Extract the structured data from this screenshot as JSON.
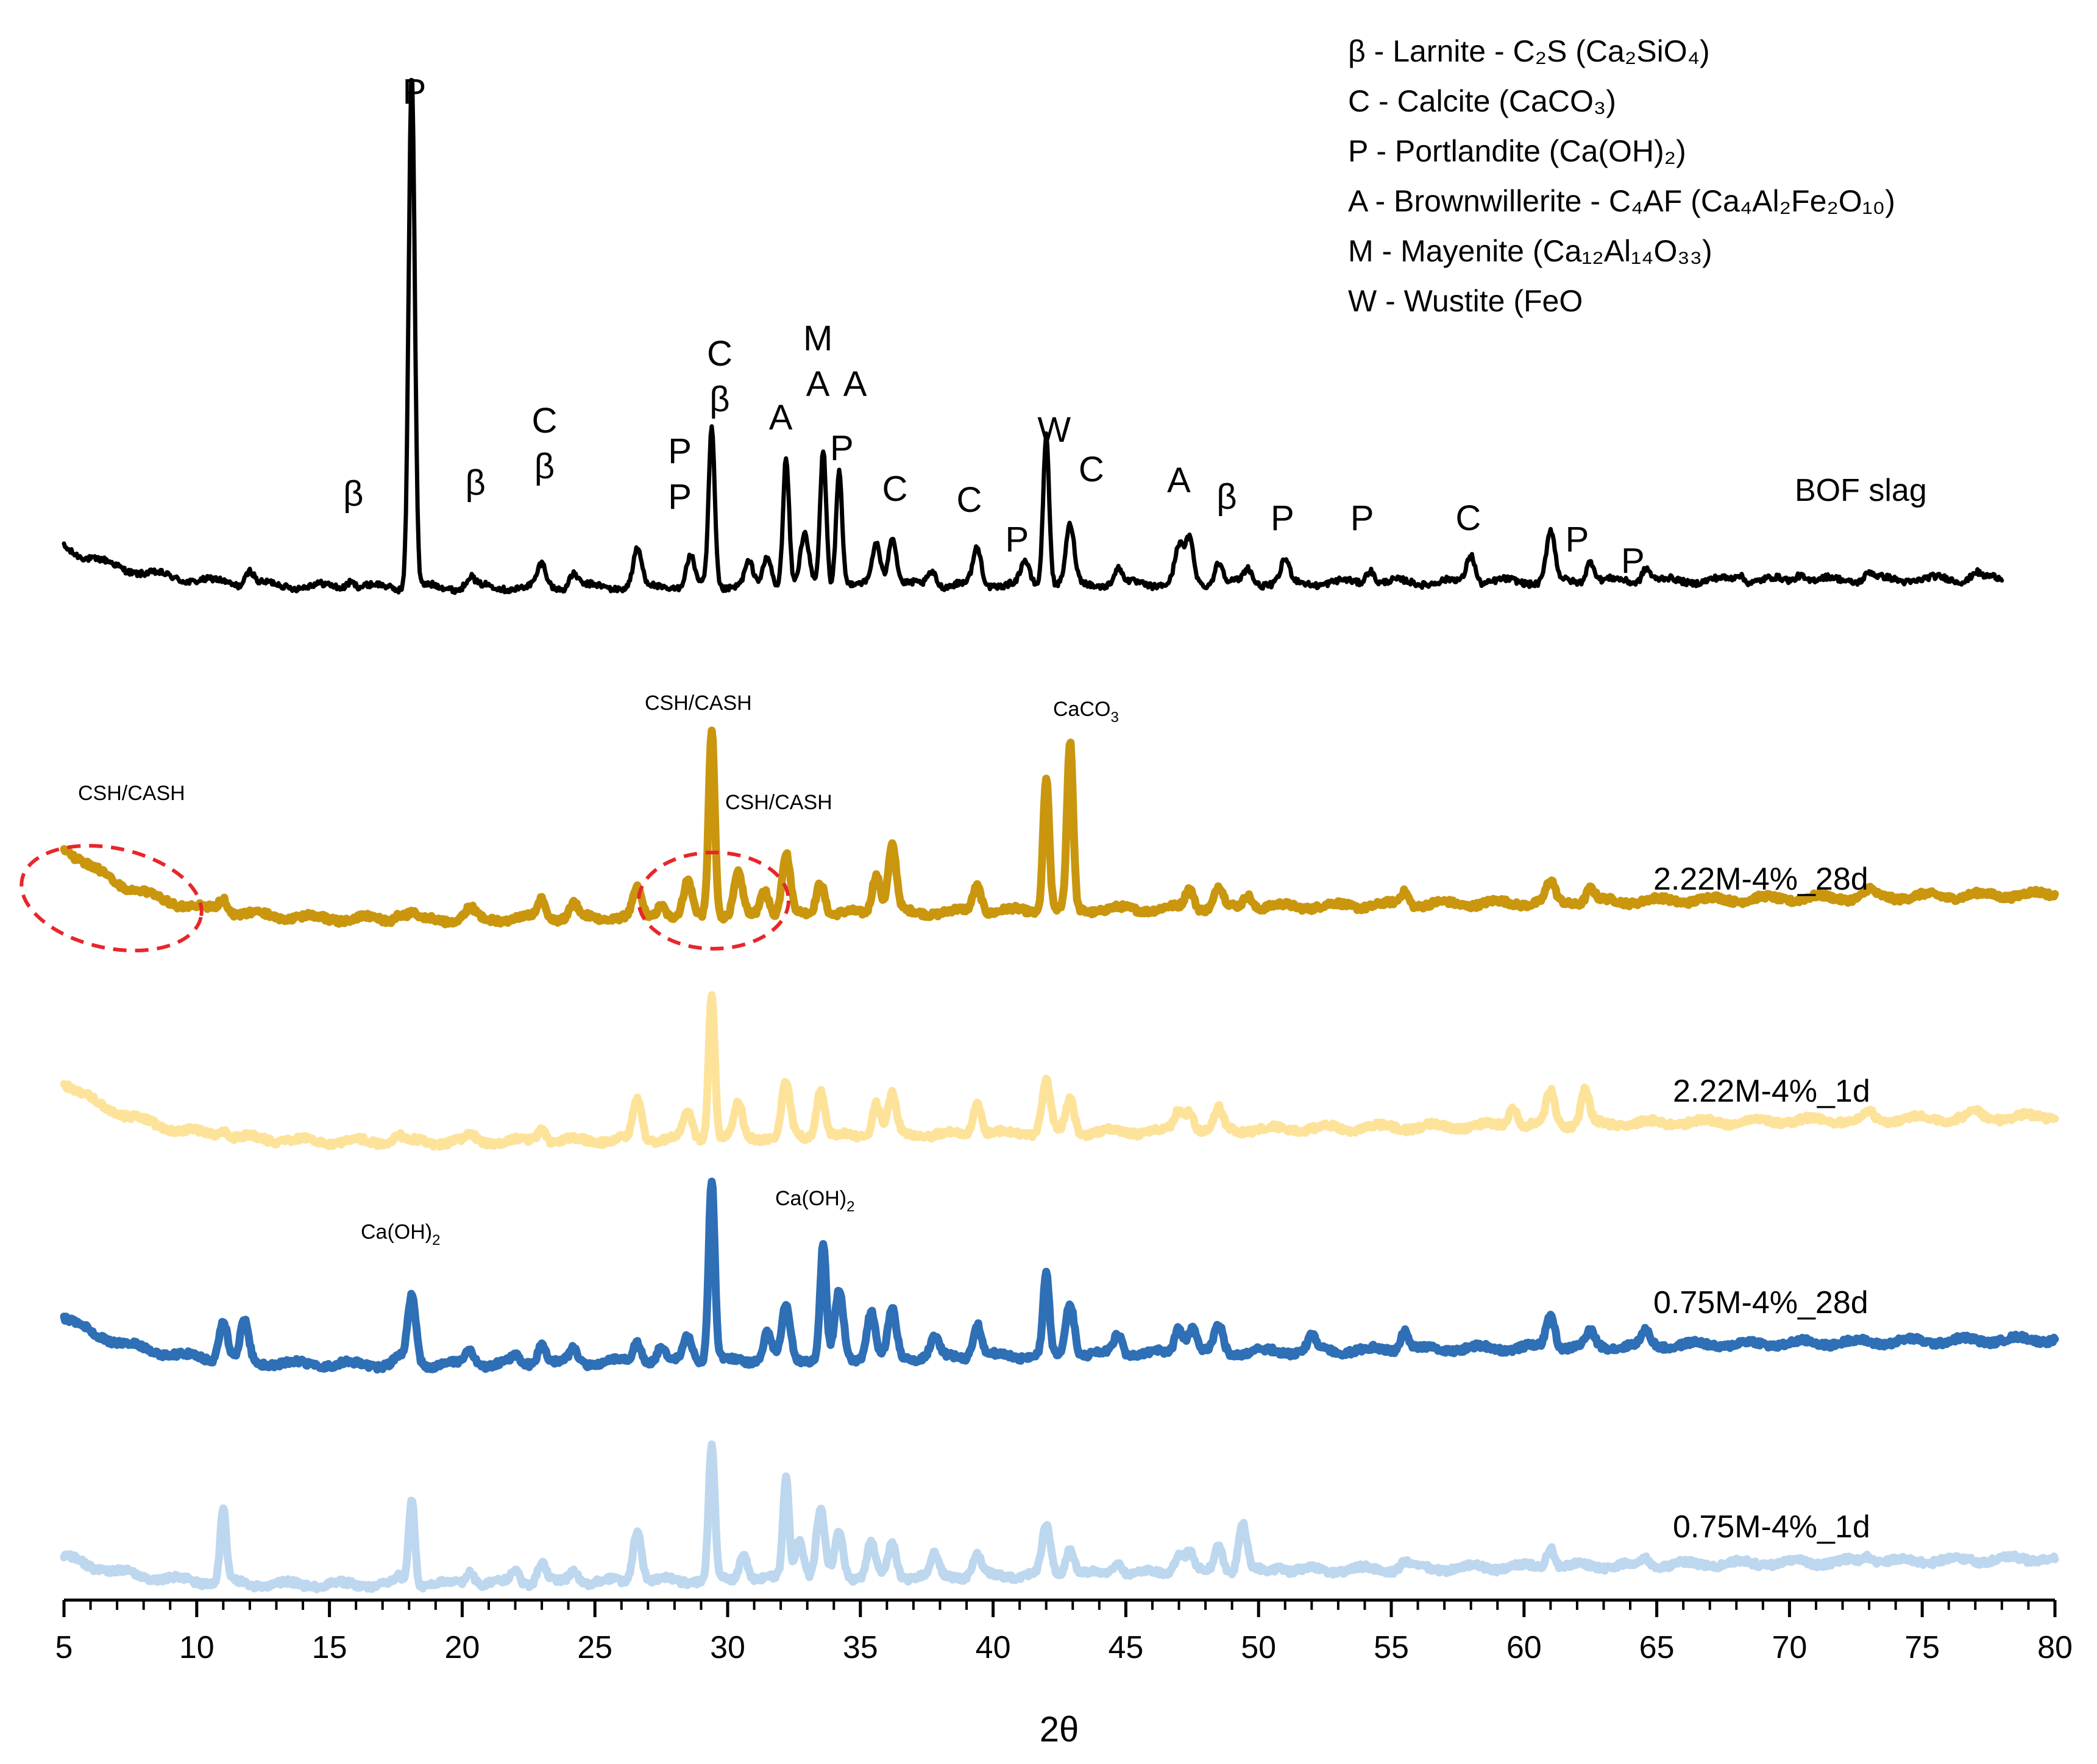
{
  "chart_data": {
    "type": "line",
    "title": "",
    "xlabel": "2θ",
    "ylabel": "",
    "xlim": [
      5,
      80
    ],
    "xticks": [
      "5",
      "10",
      "15",
      "20",
      "25",
      "30",
      "35",
      "40",
      "45",
      "50",
      "55",
      "60",
      "65",
      "70",
      "75",
      "80"
    ],
    "series": [
      {
        "name": "BOF slag",
        "color": "#000000",
        "x_range": [
          5,
          78
        ],
        "baseline": 0,
        "start_level": 0.06,
        "peaks": [
          [
            12.0,
            0.02
          ],
          [
            15.8,
            0.01
          ],
          [
            18.1,
            0.72
          ],
          [
            20.3,
            0.015
          ],
          [
            23.0,
            0.03
          ],
          [
            24.2,
            0.02
          ],
          [
            26.6,
            0.05
          ],
          [
            28.6,
            0.04
          ],
          [
            29.4,
            0.22
          ],
          [
            30.8,
            0.03
          ],
          [
            31.5,
            0.04
          ],
          [
            32.2,
            0.18
          ],
          [
            32.9,
            0.07
          ],
          [
            33.6,
            0.19
          ],
          [
            34.2,
            0.16
          ],
          [
            35.6,
            0.06
          ],
          [
            36.2,
            0.07
          ],
          [
            37.7,
            0.02
          ],
          [
            39.4,
            0.05
          ],
          [
            41.2,
            0.03
          ],
          [
            42.0,
            0.21
          ],
          [
            42.9,
            0.08
          ],
          [
            44.7,
            0.02
          ],
          [
            47.0,
            0.05
          ],
          [
            47.4,
            0.06
          ],
          [
            48.5,
            0.03
          ],
          [
            49.6,
            0.02
          ],
          [
            51.0,
            0.03
          ],
          [
            54.2,
            0.02
          ],
          [
            58.0,
            0.04
          ],
          [
            61.0,
            0.07
          ],
          [
            62.5,
            0.03
          ],
          [
            64.6,
            0.02
          ],
          [
            68.1,
            0.01
          ],
          [
            70.4,
            0.01
          ],
          [
            73.0,
            0.01
          ],
          [
            77.0,
            0.01
          ]
        ]
      },
      {
        "name": "2.22M-4%_28d",
        "color": "#c9960e",
        "x_range": [
          5,
          80
        ],
        "baseline": 0,
        "start_level": 0.12,
        "peaks": [
          [
            11.0,
            0.02
          ],
          [
            17.6,
            0.01
          ],
          [
            18.1,
            0.01
          ],
          [
            20.3,
            0.015
          ],
          [
            23.0,
            0.03
          ],
          [
            24.2,
            0.02
          ],
          [
            26.6,
            0.04
          ],
          [
            27.5,
            0.02
          ],
          [
            28.5,
            0.05
          ],
          [
            29.4,
            0.28
          ],
          [
            30.4,
            0.06
          ],
          [
            31.4,
            0.04
          ],
          [
            32.2,
            0.09
          ],
          [
            33.5,
            0.05
          ],
          [
            35.6,
            0.06
          ],
          [
            36.2,
            0.1
          ],
          [
            39.4,
            0.04
          ],
          [
            42.0,
            0.2
          ],
          [
            42.9,
            0.25
          ],
          [
            47.4,
            0.03
          ],
          [
            48.5,
            0.03
          ],
          [
            49.6,
            0.02
          ],
          [
            55.5,
            0.02
          ],
          [
            61.0,
            0.03
          ],
          [
            62.5,
            0.02
          ],
          [
            73.0,
            0.01
          ]
        ]
      },
      {
        "name": "2.22M-4%_1d",
        "color": "#fde39a",
        "x_range": [
          5,
          80
        ],
        "baseline": 0,
        "start_level": 0.1,
        "peaks": [
          [
            11.0,
            0.01
          ],
          [
            17.6,
            0.01
          ],
          [
            20.3,
            0.01
          ],
          [
            23.0,
            0.02
          ],
          [
            26.6,
            0.06
          ],
          [
            28.5,
            0.04
          ],
          [
            29.4,
            0.22
          ],
          [
            30.4,
            0.05
          ],
          [
            32.2,
            0.08
          ],
          [
            33.5,
            0.07
          ],
          [
            35.6,
            0.05
          ],
          [
            36.2,
            0.06
          ],
          [
            39.4,
            0.05
          ],
          [
            42.0,
            0.08
          ],
          [
            42.9,
            0.05
          ],
          [
            47.0,
            0.03
          ],
          [
            47.4,
            0.03
          ],
          [
            48.5,
            0.03
          ],
          [
            59.6,
            0.03
          ],
          [
            61.0,
            0.05
          ],
          [
            62.3,
            0.05
          ],
          [
            73.0,
            0.01
          ],
          [
            77.0,
            0.01
          ]
        ]
      },
      {
        "name": "0.75M-4%_28d",
        "color": "#2e6fb6",
        "x_range": [
          5,
          80
        ],
        "baseline": 0,
        "start_level": 0.08,
        "peaks": [
          [
            11.0,
            0.06
          ],
          [
            11.8,
            0.06
          ],
          [
            17.6,
            0.01
          ],
          [
            18.1,
            0.1
          ],
          [
            20.3,
            0.02
          ],
          [
            22.0,
            0.01
          ],
          [
            23.0,
            0.03
          ],
          [
            24.2,
            0.02
          ],
          [
            26.6,
            0.03
          ],
          [
            27.5,
            0.02
          ],
          [
            28.5,
            0.04
          ],
          [
            29.4,
            0.27
          ],
          [
            31.5,
            0.04
          ],
          [
            32.2,
            0.08
          ],
          [
            33.6,
            0.17
          ],
          [
            34.2,
            0.1
          ],
          [
            35.4,
            0.07
          ],
          [
            36.2,
            0.07
          ],
          [
            37.8,
            0.03
          ],
          [
            39.4,
            0.05
          ],
          [
            42.0,
            0.12
          ],
          [
            42.9,
            0.08
          ],
          [
            44.7,
            0.03
          ],
          [
            47.0,
            0.04
          ],
          [
            47.5,
            0.04
          ],
          [
            48.5,
            0.04
          ],
          [
            52.0,
            0.02
          ],
          [
            55.5,
            0.03
          ],
          [
            61.0,
            0.05
          ],
          [
            62.5,
            0.02
          ],
          [
            64.6,
            0.02
          ]
        ]
      },
      {
        "name": "0.75M-4%_1d",
        "color": "#bdd7ee",
        "x_range": [
          5,
          80
        ],
        "baseline": 0,
        "start_level": 0.05,
        "peaks": [
          [
            11.0,
            0.11
          ],
          [
            17.6,
            0.01
          ],
          [
            18.1,
            0.13
          ],
          [
            20.3,
            0.02
          ],
          [
            22.0,
            0.02
          ],
          [
            23.0,
            0.03
          ],
          [
            24.2,
            0.02
          ],
          [
            26.6,
            0.08
          ],
          [
            29.4,
            0.2
          ],
          [
            30.6,
            0.04
          ],
          [
            32.2,
            0.15
          ],
          [
            32.7,
            0.06
          ],
          [
            33.5,
            0.1
          ],
          [
            34.2,
            0.07
          ],
          [
            35.4,
            0.05
          ],
          [
            36.2,
            0.05
          ],
          [
            37.8,
            0.03
          ],
          [
            39.4,
            0.03
          ],
          [
            42.0,
            0.07
          ],
          [
            42.9,
            0.04
          ],
          [
            44.7,
            0.02
          ],
          [
            47.0,
            0.03
          ],
          [
            47.4,
            0.03
          ],
          [
            48.5,
            0.04
          ],
          [
            49.4,
            0.07
          ],
          [
            50.8,
            0.01
          ],
          [
            55.5,
            0.01
          ],
          [
            61.0,
            0.03
          ],
          [
            64.6,
            0.01
          ],
          [
            73.0,
            0.01
          ]
        ]
      }
    ],
    "phase_markers": [
      {
        "x": 15.9,
        "lines": [
          "β"
        ]
      },
      {
        "x": 18.2,
        "lines": [
          "P"
        ]
      },
      {
        "x": 20.5,
        "lines": [
          "β"
        ]
      },
      {
        "x": 23.1,
        "lines": [
          "C",
          "β"
        ]
      },
      {
        "x": 28.2,
        "lines": [
          "P",
          "P"
        ]
      },
      {
        "x": 29.7,
        "lines": [
          "C",
          "β"
        ]
      },
      {
        "x": 32.0,
        "lines": [
          "A"
        ]
      },
      {
        "x": 33.4,
        "lines": [
          "M",
          "A"
        ]
      },
      {
        "x": 34.8,
        "lines": [
          "A"
        ]
      },
      {
        "x": 34.3,
        "lines": [
          "P"
        ]
      },
      {
        "x": 36.3,
        "lines": [
          "C"
        ]
      },
      {
        "x": 39.1,
        "lines": [
          "C"
        ]
      },
      {
        "x": 40.9,
        "lines": [
          "P"
        ]
      },
      {
        "x": 42.3,
        "lines": [
          "W"
        ]
      },
      {
        "x": 43.7,
        "lines": [
          "C"
        ]
      },
      {
        "x": 47.0,
        "lines": [
          "A"
        ]
      },
      {
        "x": 48.8,
        "lines": [
          "β"
        ]
      },
      {
        "x": 50.9,
        "lines": [
          "P"
        ]
      },
      {
        "x": 53.9,
        "lines": [
          "P"
        ]
      },
      {
        "x": 57.9,
        "lines": [
          "C"
        ]
      },
      {
        "x": 62.0,
        "lines": [
          "P"
        ]
      },
      {
        "x": 64.1,
        "lines": [
          "P"
        ]
      }
    ],
    "annotations": [
      {
        "text": "CSH/CASH"
      },
      {
        "text": "CSH/CASH"
      },
      {
        "text": "CSH/CASH"
      },
      {
        "text": "CaCO",
        "sub": "3"
      },
      {
        "text": "Ca(OH)",
        "sub": "2"
      },
      {
        "text": "Ca(OH)",
        "sub": "2"
      }
    ],
    "legend": [
      {
        "text": "β - Larnite - C₂S (Ca₂SiO₄)"
      },
      {
        "text": "C - Calcite (CaCO₃)"
      },
      {
        "text": "P  - Portlandite (Ca(OH)₂)"
      },
      {
        "text": "A - Brownwillerite - C₄AF (Ca₄Al₂Fe₂O₁₀)"
      },
      {
        "text": "M - Mayenite (Ca₁₂Al₁₄O₃₃)"
      },
      {
        "text": "W - Wustite (FeO"
      }
    ],
    "highlight_color": "#e8262a"
  }
}
